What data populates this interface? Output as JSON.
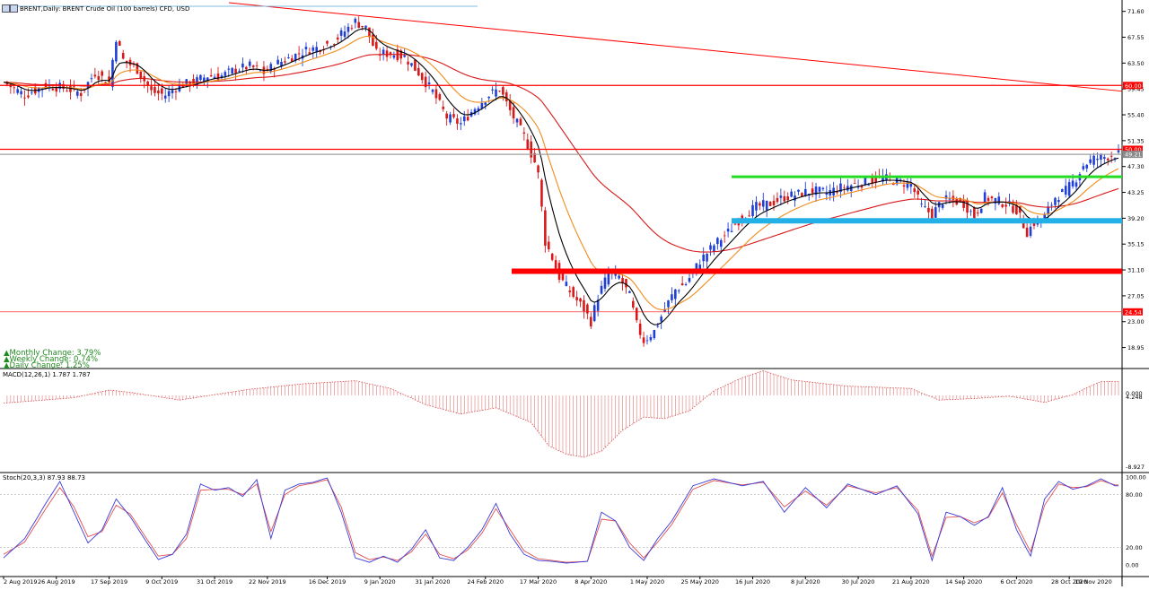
{
  "header": {
    "title": "BRENT,Daily:  BRENT Crude Oil (100 barrels) CFD, USD"
  },
  "stats": {
    "monthly": "Monthly Change: 3.79%",
    "weekly": "Weekly Change: 0.74%",
    "daily": "Daily Change: 1.25%"
  },
  "macd_label": "MACD(12,26,1) 1.787 1.787",
  "stoch_label": "Stoch(20,3,3) 87.93 88.73",
  "colors": {
    "bull": "#1f3fd6",
    "bear": "#d81919",
    "ma_fast": "#000000",
    "ma_mid": "#f08c1a",
    "ma_slow": "#d81919",
    "level_red": "#ff0000",
    "level_green": "#22dd22",
    "level_blue": "#22b0e6",
    "macd": "#d84a4a",
    "stoch_k": "#3a3ad8",
    "stoch_d": "#e05050"
  },
  "chart_data": {
    "type": "candlestick",
    "price_axis": {
      "ticks": [
        "71.60",
        "67.55",
        "63.50",
        "59.45",
        "55.40",
        "51.35",
        "47.30",
        "43.25",
        "39.20",
        "35.15",
        "31.10",
        "27.05",
        "23.00",
        "18.95"
      ],
      "range": [
        15.8,
        73.1
      ]
    },
    "price_tags": {
      "resistance_upper": "60.00",
      "resistance_lower": "50.00",
      "current_price": "49.21",
      "support_low": "24.54"
    },
    "levels": [
      {
        "name": "resistance-60",
        "value": 60.0,
        "color": "red",
        "weight": "thin"
      },
      {
        "name": "resistance-50",
        "value": 50.0,
        "color": "red",
        "weight": "thin"
      },
      {
        "name": "current",
        "value": 49.21,
        "color": "gray",
        "weight": "thin"
      },
      {
        "name": "green-zone",
        "value": 45.7,
        "color": "green",
        "weight": "medium",
        "from_date": "16 Jun 2020"
      },
      {
        "name": "blue-zone",
        "value": 38.8,
        "color": "blue",
        "weight": "thick",
        "from_date": "16 Jun 2020"
      },
      {
        "name": "red-zone",
        "value": 30.9,
        "color": "red",
        "weight": "thick",
        "from_date": "17 Mar 2020"
      },
      {
        "name": "support-24",
        "value": 24.54,
        "color": "red",
        "weight": "hairline"
      }
    ],
    "trendline": {
      "from": [
        "27 Nov 2019",
        73.1
      ],
      "to": [
        "08 Dec 2020",
        59.1
      ]
    },
    "x_ticks": [
      "2 Aug 2019",
      "26 Aug 2019",
      "17 Sep 2019",
      "9 Oct 2019",
      "31 Oct 2019",
      "22 Nov 2019",
      "16 Dec 2019",
      "9 Jan 2020",
      "31 Jan 2020",
      "24 Feb 2020",
      "17 Mar 2020",
      "8 Apr 2020",
      "1 May 2020",
      "25 May 2020",
      "16 Jun 2020",
      "8 Jul 2020",
      "30 Jul 2020",
      "21 Aug 2020",
      "14 Sep 2020",
      "6 Oct 2020",
      "28 Oct 2020",
      "19 Nov 2020"
    ],
    "closes": [
      [
        0,
        60.5
      ],
      [
        6,
        58.5
      ],
      [
        12,
        60.0
      ],
      [
        18,
        59.5
      ],
      [
        22,
        58.8
      ],
      [
        26,
        62.0
      ],
      [
        30,
        60.5
      ],
      [
        32,
        67.5
      ],
      [
        34,
        64.0
      ],
      [
        38,
        62.5
      ],
      [
        42,
        59.0
      ],
      [
        46,
        58.5
      ],
      [
        50,
        60.0
      ],
      [
        54,
        60.5
      ],
      [
        58,
        61.5
      ],
      [
        62,
        61.5
      ],
      [
        66,
        62.5
      ],
      [
        70,
        63.0
      ],
      [
        74,
        62.0
      ],
      [
        78,
        63.5
      ],
      [
        82,
        64.5
      ],
      [
        86,
        65.5
      ],
      [
        90,
        66.0
      ],
      [
        94,
        67.0
      ],
      [
        97,
        68.5
      ],
      [
        100,
        70.0
      ],
      [
        103,
        69.0
      ],
      [
        106,
        65.0
      ],
      [
        110,
        65.0
      ],
      [
        114,
        64.5
      ],
      [
        118,
        62.0
      ],
      [
        122,
        59.0
      ],
      [
        126,
        55.0
      ],
      [
        130,
        54.0
      ],
      [
        134,
        56.5
      ],
      [
        138,
        58.5
      ],
      [
        141,
        59.5
      ],
      [
        144,
        56.0
      ],
      [
        148,
        52.0
      ],
      [
        151,
        48.0
      ],
      [
        152,
        46.0
      ],
      [
        154,
        35.5
      ],
      [
        156,
        33.0
      ],
      [
        158,
        30.0
      ],
      [
        162,
        27.0
      ],
      [
        165,
        25.0
      ],
      [
        167,
        23.0
      ],
      [
        169,
        27.0
      ],
      [
        172,
        30.5
      ],
      [
        175,
        30.0
      ],
      [
        178,
        27.0
      ],
      [
        180,
        22.5
      ],
      [
        182,
        20.0
      ],
      [
        185,
        21.5
      ],
      [
        188,
        25.0
      ],
      [
        191,
        28.0
      ],
      [
        194,
        29.0
      ],
      [
        198,
        32.5
      ],
      [
        202,
        35.0
      ],
      [
        206,
        37.0
      ],
      [
        210,
        39.5
      ],
      [
        214,
        41.0
      ],
      [
        218,
        41.5
      ],
      [
        222,
        42.5
      ],
      [
        226,
        43.0
      ],
      [
        230,
        43.5
      ],
      [
        234,
        43.2
      ],
      [
        238,
        44.0
      ],
      [
        242,
        44.5
      ],
      [
        246,
        45.0
      ],
      [
        250,
        45.5
      ],
      [
        254,
        45.0
      ],
      [
        258,
        44.5
      ],
      [
        261,
        41.0
      ],
      [
        264,
        39.8
      ],
      [
        267,
        42.0
      ],
      [
        270,
        42.0
      ],
      [
        273,
        41.5
      ],
      [
        276,
        39.5
      ],
      [
        279,
        42.5
      ],
      [
        282,
        42.0
      ],
      [
        285,
        41.5
      ],
      [
        288,
        40.5
      ],
      [
        291,
        37.0
      ],
      [
        293,
        38.5
      ],
      [
        296,
        39.5
      ],
      [
        299,
        42.5
      ],
      [
        302,
        43.5
      ],
      [
        305,
        45.5
      ],
      [
        307,
        47.5
      ],
      [
        310,
        48.5
      ],
      [
        313,
        48.8
      ],
      [
        316,
        49.2
      ]
    ],
    "macd_axis": {
      "ticks": [
        "4.248",
        "0.000",
        "-8.927"
      ],
      "range": [
        -8.927,
        4.248
      ]
    },
    "macd_values": [
      [
        0,
        -1.0
      ],
      [
        20,
        -0.3
      ],
      [
        30,
        0.7
      ],
      [
        36,
        0.4
      ],
      [
        50,
        -0.6
      ],
      [
        70,
        0.8
      ],
      [
        85,
        1.5
      ],
      [
        100,
        1.9
      ],
      [
        110,
        0.9
      ],
      [
        120,
        -1.2
      ],
      [
        130,
        -2.4
      ],
      [
        140,
        -1.6
      ],
      [
        150,
        -3.5
      ],
      [
        155,
        -6.5
      ],
      [
        160,
        -7.6
      ],
      [
        165,
        -8.0
      ],
      [
        170,
        -7.2
      ],
      [
        176,
        -4.5
      ],
      [
        182,
        -2.8
      ],
      [
        188,
        -3.0
      ],
      [
        195,
        -2.0
      ],
      [
        202,
        0.6
      ],
      [
        210,
        2.3
      ],
      [
        216,
        3.2
      ],
      [
        224,
        2.0
      ],
      [
        240,
        1.2
      ],
      [
        258,
        0.9
      ],
      [
        266,
        -0.6
      ],
      [
        276,
        -0.4
      ],
      [
        286,
        -0.1
      ],
      [
        296,
        -0.9
      ],
      [
        304,
        0.1
      ],
      [
        308,
        1.0
      ],
      [
        312,
        1.8
      ],
      [
        316,
        1.787
      ]
    ],
    "stoch_axis": {
      "ticks": [
        "100.00",
        "80.00",
        "20.00",
        "0.00"
      ],
      "range": [
        0,
        100
      ]
    },
    "stoch_k": [
      [
        0,
        8
      ],
      [
        6,
        30
      ],
      [
        12,
        70
      ],
      [
        16,
        95
      ],
      [
        20,
        60
      ],
      [
        24,
        25
      ],
      [
        28,
        40
      ],
      [
        32,
        75
      ],
      [
        36,
        55
      ],
      [
        40,
        30
      ],
      [
        44,
        6
      ],
      [
        48,
        12
      ],
      [
        52,
        35
      ],
      [
        56,
        92
      ],
      [
        60,
        85
      ],
      [
        64,
        88
      ],
      [
        68,
        78
      ],
      [
        72,
        97
      ],
      [
        76,
        30
      ],
      [
        80,
        85
      ],
      [
        84,
        92
      ],
      [
        88,
        94
      ],
      [
        92,
        99
      ],
      [
        96,
        60
      ],
      [
        100,
        8
      ],
      [
        104,
        3
      ],
      [
        108,
        10
      ],
      [
        112,
        3
      ],
      [
        116,
        18
      ],
      [
        120,
        40
      ],
      [
        124,
        8
      ],
      [
        128,
        5
      ],
      [
        132,
        20
      ],
      [
        136,
        40
      ],
      [
        140,
        70
      ],
      [
        144,
        35
      ],
      [
        148,
        12
      ],
      [
        152,
        5
      ],
      [
        156,
        4
      ],
      [
        160,
        2
      ],
      [
        166,
        4
      ],
      [
        170,
        60
      ],
      [
        174,
        50
      ],
      [
        178,
        20
      ],
      [
        182,
        5
      ],
      [
        186,
        30
      ],
      [
        190,
        50
      ],
      [
        196,
        90
      ],
      [
        202,
        98
      ],
      [
        210,
        90
      ],
      [
        216,
        95
      ],
      [
        222,
        60
      ],
      [
        228,
        88
      ],
      [
        234,
        65
      ],
      [
        240,
        92
      ],
      [
        248,
        80
      ],
      [
        254,
        90
      ],
      [
        260,
        58
      ],
      [
        264,
        5
      ],
      [
        268,
        60
      ],
      [
        272,
        55
      ],
      [
        276,
        45
      ],
      [
        280,
        55
      ],
      [
        284,
        88
      ],
      [
        288,
        40
      ],
      [
        292,
        10
      ],
      [
        296,
        75
      ],
      [
        300,
        95
      ],
      [
        304,
        86
      ],
      [
        308,
        90
      ],
      [
        312,
        98
      ],
      [
        316,
        90
      ]
    ],
    "stoch_d": [
      [
        0,
        12
      ],
      [
        6,
        26
      ],
      [
        12,
        64
      ],
      [
        16,
        88
      ],
      [
        20,
        66
      ],
      [
        24,
        32
      ],
      [
        28,
        38
      ],
      [
        32,
        68
      ],
      [
        36,
        58
      ],
      [
        40,
        34
      ],
      [
        44,
        10
      ],
      [
        48,
        12
      ],
      [
        52,
        30
      ],
      [
        56,
        85
      ],
      [
        60,
        86
      ],
      [
        64,
        86
      ],
      [
        68,
        80
      ],
      [
        72,
        92
      ],
      [
        76,
        38
      ],
      [
        80,
        80
      ],
      [
        84,
        90
      ],
      [
        88,
        93
      ],
      [
        92,
        97
      ],
      [
        96,
        66
      ],
      [
        100,
        14
      ],
      [
        104,
        6
      ],
      [
        108,
        9
      ],
      [
        112,
        5
      ],
      [
        116,
        15
      ],
      [
        120,
        35
      ],
      [
        124,
        12
      ],
      [
        128,
        7
      ],
      [
        132,
        17
      ],
      [
        136,
        36
      ],
      [
        140,
        64
      ],
      [
        144,
        40
      ],
      [
        148,
        16
      ],
      [
        152,
        7
      ],
      [
        156,
        5
      ],
      [
        160,
        3
      ],
      [
        166,
        4
      ],
      [
        170,
        52
      ],
      [
        174,
        50
      ],
      [
        178,
        25
      ],
      [
        182,
        8
      ],
      [
        186,
        26
      ],
      [
        190,
        46
      ],
      [
        196,
        86
      ],
      [
        202,
        96
      ],
      [
        210,
        91
      ],
      [
        216,
        94
      ],
      [
        222,
        66
      ],
      [
        228,
        84
      ],
      [
        234,
        68
      ],
      [
        240,
        90
      ],
      [
        248,
        82
      ],
      [
        254,
        88
      ],
      [
        260,
        62
      ],
      [
        264,
        10
      ],
      [
        268,
        54
      ],
      [
        272,
        55
      ],
      [
        276,
        48
      ],
      [
        280,
        54
      ],
      [
        284,
        82
      ],
      [
        288,
        46
      ],
      [
        292,
        15
      ],
      [
        296,
        68
      ],
      [
        300,
        92
      ],
      [
        304,
        88
      ],
      [
        308,
        89
      ],
      [
        312,
        96
      ],
      [
        316,
        91
      ]
    ]
  }
}
